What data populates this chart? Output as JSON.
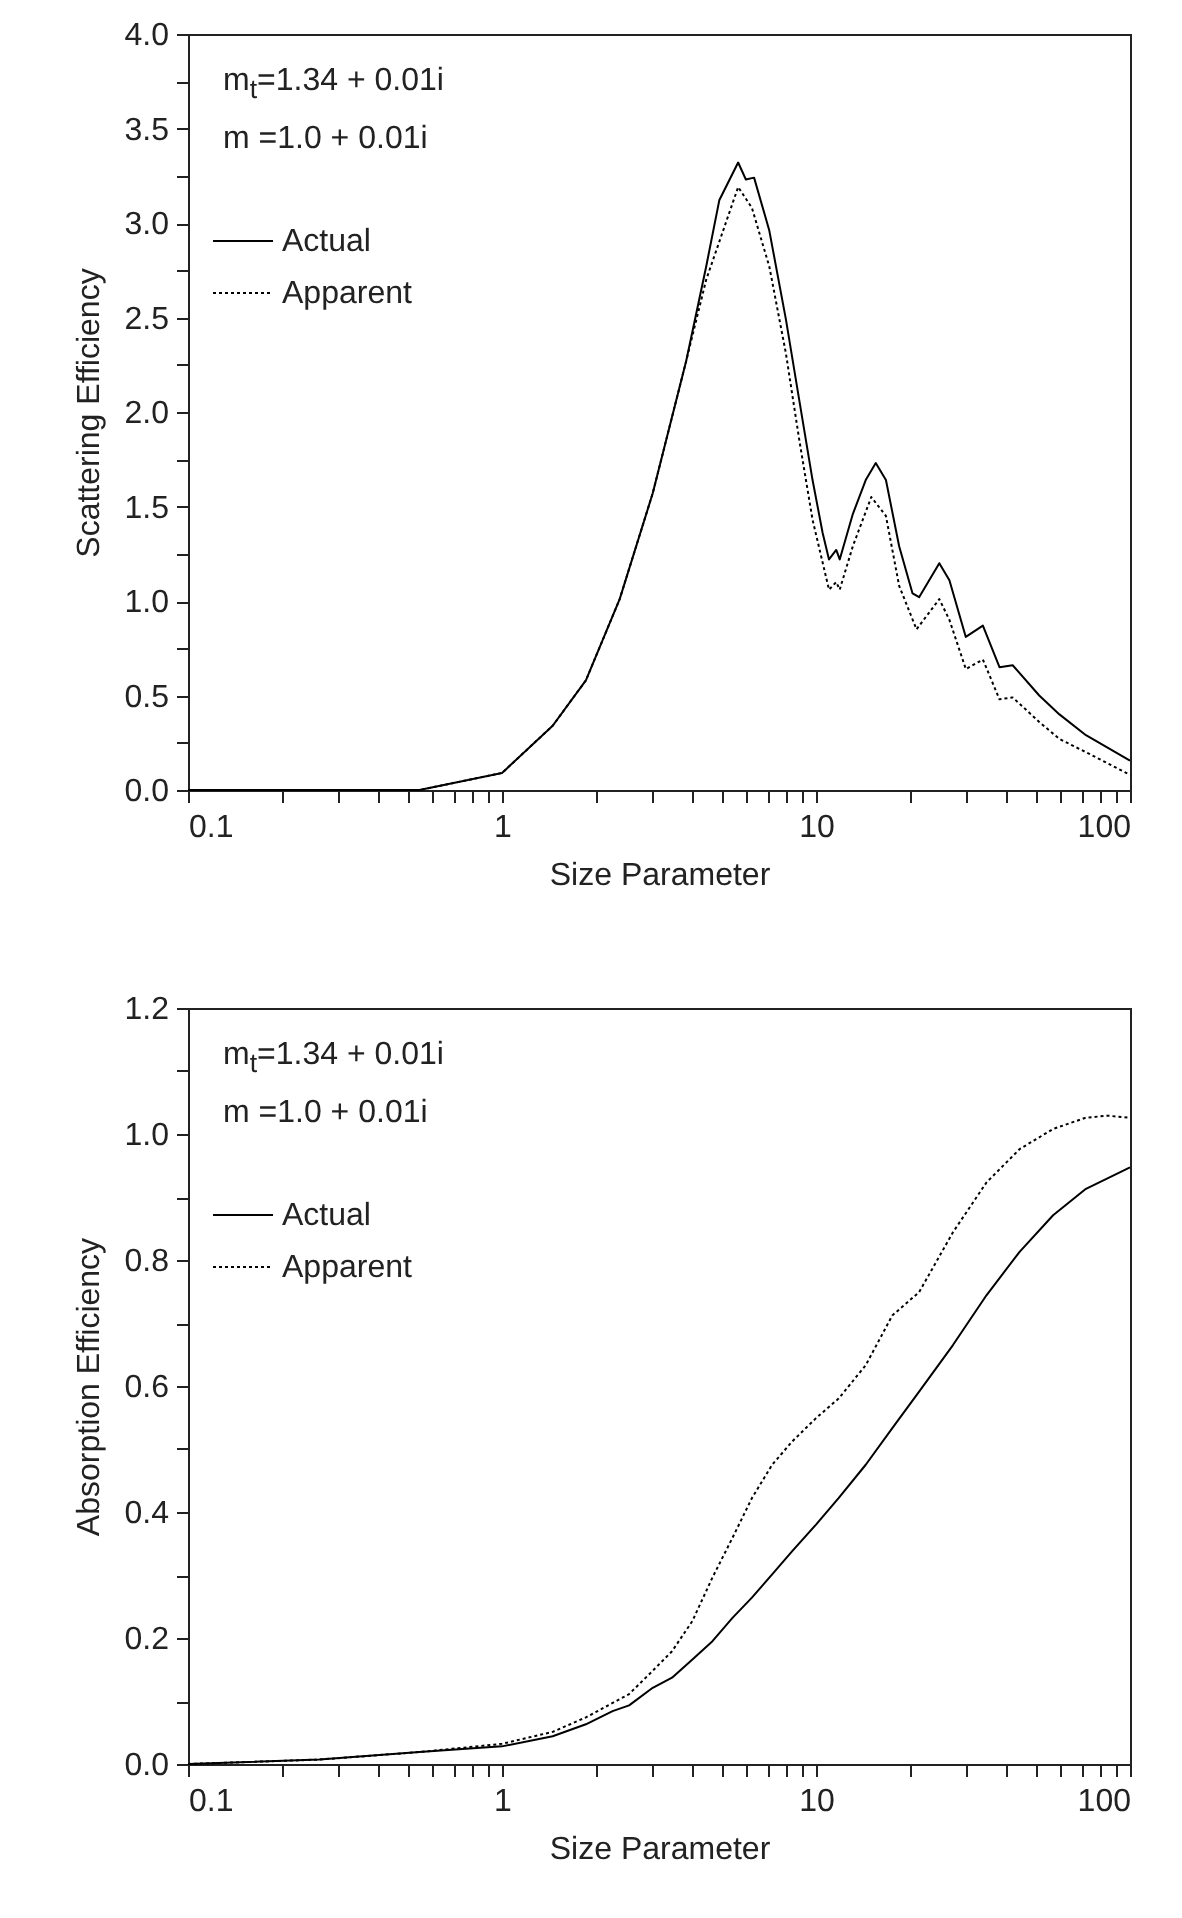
{
  "chart_data": [
    {
      "type": "line",
      "xlabel": "Size Parameter",
      "ylabel": "Scattering Efficiency",
      "log": "x",
      "xlim": [
        0.1,
        100
      ],
      "xticks": [
        0.1,
        {
          "value": 0.2,
          "label": null
        },
        {
          "value": 0.3,
          "label": null
        },
        {
          "value": 0.4,
          "label": null
        },
        {
          "value": 0.5,
          "label": null
        },
        {
          "value": 0.6,
          "label": null
        },
        {
          "value": 0.7,
          "label": null
        },
        {
          "value": 0.8,
          "label": null
        },
        {
          "value": 0.9,
          "label": null
        },
        1,
        {
          "value": 2,
          "label": null
        },
        {
          "value": 3,
          "label": null
        },
        {
          "value": 4,
          "label": null
        },
        {
          "value": 5,
          "label": null
        },
        {
          "value": 6,
          "label": null
        },
        {
          "value": 7,
          "label": null
        },
        {
          "value": 8,
          "label": null
        },
        {
          "value": 9,
          "label": null
        },
        10,
        {
          "value": 20,
          "label": null
        },
        {
          "value": 30,
          "label": null
        },
        {
          "value": 40,
          "label": null
        },
        {
          "value": 50,
          "label": null
        },
        {
          "value": 60,
          "label": null
        },
        {
          "value": 70,
          "label": null
        },
        {
          "value": 80,
          "label": null
        },
        {
          "value": 90,
          "label": null
        },
        100
      ],
      "ylim": [
        0,
        4
      ],
      "yticks": [
        {
          "value": 0,
          "label": "0.0"
        },
        {
          "value": 0.25,
          "label": null
        },
        {
          "value": 0.5,
          "label": "0.5"
        },
        {
          "value": 0.75,
          "label": null
        },
        {
          "value": 1,
          "label": "1.0"
        },
        {
          "value": 1.25,
          "label": null
        },
        {
          "value": 1.5,
          "label": "1.5"
        },
        {
          "value": 1.75,
          "label": null
        },
        {
          "value": 2,
          "label": "2.0"
        },
        {
          "value": 2.25,
          "label": null
        },
        {
          "value": 2.5,
          "label": "2.5"
        },
        {
          "value": 2.75,
          "label": null
        },
        {
          "value": 3,
          "label": "3.0"
        },
        {
          "value": 3.25,
          "label": null
        },
        {
          "value": 3.5,
          "label": "3.5"
        },
        {
          "value": 3.75,
          "label": null
        },
        {
          "value": 4,
          "label": "4.0"
        }
      ],
      "annotations": [
        "m$_{t}$=1.34 + 0.01i",
        "m =1.0 + 0.01i"
      ],
      "legend": "top left",
      "series": [
        {
          "name": "Actual",
          "color": "#000000",
          "line_style": "solid",
          "x": [
            0.1,
            0.546,
            1,
            1.45,
            1.85,
            2.37,
            3.02,
            3.86,
            4.47,
            4.92,
            5.65,
            5.98,
            6.35,
            7.1,
            8.02,
            8.85,
            9.75,
            10.5,
            11,
            11.6,
            11.9,
            13.1,
            14.4,
            15.5,
            16.7,
            18.4,
            20.3,
            21.3,
            24.7,
            26.6,
            30,
            34,
            38.4,
            42.3,
            51.4,
            59.6,
            72.4,
            100
          ],
          "values": [
            0,
            0,
            0.09,
            0.34,
            0.58,
            1.01,
            1.57,
            2.27,
            2.77,
            3.12,
            3.32,
            3.23,
            3.24,
            2.96,
            2.49,
            2.06,
            1.64,
            1.36,
            1.22,
            1.27,
            1.22,
            1.46,
            1.64,
            1.73,
            1.64,
            1.29,
            1.04,
            1.02,
            1.2,
            1.11,
            0.81,
            0.87,
            0.65,
            0.66,
            0.5,
            0.4,
            0.29,
            0.155
          ]
        },
        {
          "name": "Apparent",
          "color": "#000000",
          "line_style": "dotted",
          "x": [
            0.1,
            0.546,
            1,
            1.45,
            1.85,
            2.37,
            3.02,
            3.86,
            4.47,
            5.65,
            6.25,
            7.1,
            8.02,
            8.85,
            9.75,
            11,
            11.6,
            11.9,
            13.1,
            15,
            16.7,
            18.4,
            20.9,
            24.7,
            26.6,
            30,
            34,
            38.4,
            42.3,
            51.4,
            59.6,
            72.4,
            100
          ],
          "values": [
            0,
            0,
            0.09,
            0.34,
            0.58,
            1.01,
            1.57,
            2.27,
            2.7,
            3.19,
            3.08,
            2.77,
            2.31,
            1.85,
            1.43,
            1.06,
            1.1,
            1.06,
            1.29,
            1.55,
            1.45,
            1.08,
            0.85,
            1.01,
            0.9,
            0.64,
            0.69,
            0.48,
            0.49,
            0.36,
            0.27,
            0.2,
            0.08
          ]
        }
      ]
    },
    {
      "type": "line",
      "xlabel": "Size Parameter",
      "ylabel": "Absorption Efficiency",
      "log": "x",
      "xlim": [
        0.1,
        100
      ],
      "xticks": [
        0.1,
        {
          "value": 0.2,
          "label": null
        },
        {
          "value": 0.3,
          "label": null
        },
        {
          "value": 0.4,
          "label": null
        },
        {
          "value": 0.5,
          "label": null
        },
        {
          "value": 0.6,
          "label": null
        },
        {
          "value": 0.7,
          "label": null
        },
        {
          "value": 0.8,
          "label": null
        },
        {
          "value": 0.9,
          "label": null
        },
        1,
        {
          "value": 2,
          "label": null
        },
        {
          "value": 3,
          "label": null
        },
        {
          "value": 4,
          "label": null
        },
        {
          "value": 5,
          "label": null
        },
        {
          "value": 6,
          "label": null
        },
        {
          "value": 7,
          "label": null
        },
        {
          "value": 8,
          "label": null
        },
        {
          "value": 9,
          "label": null
        },
        10,
        {
          "value": 20,
          "label": null
        },
        {
          "value": 30,
          "label": null
        },
        {
          "value": 40,
          "label": null
        },
        {
          "value": 50,
          "label": null
        },
        {
          "value": 60,
          "label": null
        },
        {
          "value": 70,
          "label": null
        },
        {
          "value": 80,
          "label": null
        },
        {
          "value": 90,
          "label": null
        },
        100
      ],
      "ylim": [
        0,
        1.2
      ],
      "yticks": [
        {
          "value": 0,
          "label": "0.0"
        },
        {
          "value": 0.1,
          "label": null
        },
        {
          "value": 0.2,
          "label": "0.2"
        },
        {
          "value": 0.3,
          "label": null
        },
        {
          "value": 0.4,
          "label": "0.4"
        },
        {
          "value": 0.5,
          "label": null
        },
        {
          "value": 0.6,
          "label": "0.6"
        },
        {
          "value": 0.7,
          "label": null
        },
        {
          "value": 0.8,
          "label": "0.8"
        },
        {
          "value": 0.9,
          "label": null
        },
        {
          "value": 1,
          "label": "1.0"
        },
        {
          "value": 1.1,
          "label": null
        },
        {
          "value": 1.2,
          "label": "1.2"
        }
      ],
      "annotations": [
        "m$_{t}$=1.34 + 0.01i",
        "m =1.0 + 0.01i"
      ],
      "legend": "top left",
      "series": [
        {
          "name": "Actual",
          "color": "#000000",
          "line_style": "solid",
          "x": [
            0.1,
            0.262,
            0.546,
            1,
            1.45,
            1.85,
            2.25,
            2.54,
            3.02,
            3.48,
            4.04,
            4.68,
            5.42,
            6.25,
            7.25,
            8.4,
            10,
            11.8,
            14.4,
            17.5,
            21.3,
            27.3,
            34.9,
            44.5,
            56.9,
            72.4,
            100
          ],
          "values": [
            0,
            0.007,
            0.019,
            0.028,
            0.044,
            0.063,
            0.084,
            0.093,
            0.121,
            0.137,
            0.166,
            0.195,
            0.232,
            0.264,
            0.301,
            0.338,
            0.38,
            0.422,
            0.475,
            0.533,
            0.591,
            0.665,
            0.744,
            0.813,
            0.871,
            0.913,
            0.947
          ]
        },
        {
          "name": "Apparent",
          "color": "#000000",
          "line_style": "dotted",
          "x": [
            0.1,
            0.262,
            0.546,
            1,
            1.45,
            1.85,
            2.54,
            3.02,
            3.48,
            4.04,
            4.68,
            5.42,
            6.25,
            7.25,
            8.4,
            10,
            11.8,
            14.4,
            17.5,
            21.3,
            27.3,
            34.9,
            44.5,
            56.9,
            72.4,
            85,
            100
          ],
          "values": [
            0,
            0.007,
            0.019,
            0.032,
            0.051,
            0.074,
            0.111,
            0.148,
            0.179,
            0.227,
            0.296,
            0.359,
            0.422,
            0.475,
            0.512,
            0.549,
            0.58,
            0.633,
            0.712,
            0.749,
            0.844,
            0.923,
            0.976,
            1.008,
            1.026,
            1.029,
            1.026
          ]
        }
      ]
    }
  ]
}
